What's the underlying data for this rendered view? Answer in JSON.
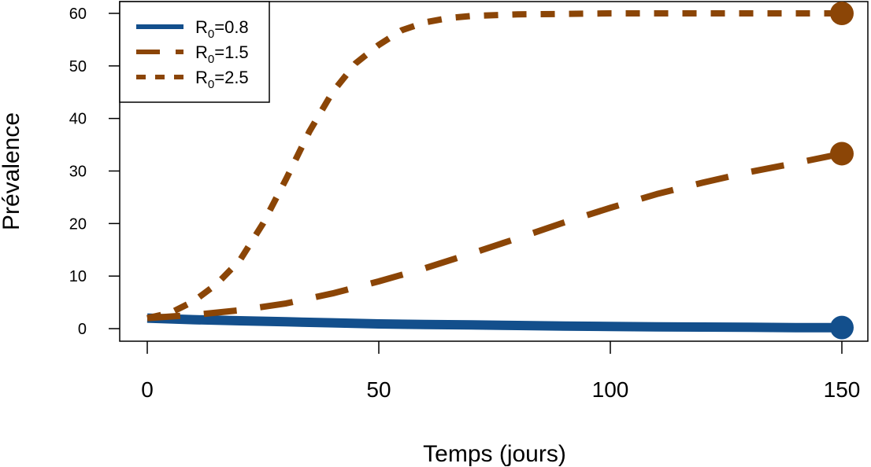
{
  "chart_data": {
    "type": "line",
    "xlabel": "Temps (jours)",
    "ylabel": "Prévalence",
    "xlim": [
      0,
      150
    ],
    "ylim": [
      0,
      60
    ],
    "x_ticks": [
      "0",
      "50",
      "100",
      "150"
    ],
    "y_ticks": [
      "0",
      "10",
      "20",
      "30",
      "40",
      "50",
      "60"
    ],
    "grid": false,
    "legend_position": "top-left",
    "series": [
      {
        "name": "R0=0.8",
        "name_base": "R",
        "name_sub": "0",
        "name_rest": "=0.8",
        "color": "#134f8c",
        "line_style": "solid",
        "x": [
          0,
          10,
          20,
          30,
          40,
          50,
          60,
          70,
          80,
          90,
          100,
          110,
          120,
          130,
          140,
          150
        ],
        "y": [
          2.0,
          1.7,
          1.5,
          1.3,
          1.1,
          0.9,
          0.8,
          0.7,
          0.6,
          0.5,
          0.4,
          0.35,
          0.3,
          0.25,
          0.2,
          0.2
        ],
        "end_marker": true
      },
      {
        "name": "R0=1.5",
        "name_base": "R",
        "name_sub": "0",
        "name_rest": "=1.5",
        "color": "#8b4506",
        "line_style": "dashed",
        "x": [
          0,
          10,
          20,
          30,
          40,
          50,
          60,
          70,
          80,
          90,
          100,
          110,
          120,
          130,
          140,
          150
        ],
        "y": [
          2.0,
          2.6,
          3.5,
          4.8,
          6.7,
          9.0,
          11.5,
          14.3,
          17.2,
          20.2,
          23.0,
          25.6,
          27.8,
          29.8,
          31.5,
          33.3
        ],
        "end_marker": true
      },
      {
        "name": "R0=2.5",
        "name_base": "R",
        "name_sub": "0",
        "name_rest": "=2.5",
        "color": "#8b4506",
        "line_style": "dotted",
        "x": [
          0,
          5,
          10,
          15,
          20,
          25,
          30,
          35,
          40,
          45,
          50,
          55,
          60,
          65,
          70,
          80,
          90,
          100,
          110,
          120,
          130,
          140,
          150
        ],
        "y": [
          2.0,
          3.0,
          5.2,
          8.5,
          13.0,
          20.0,
          28.5,
          37.5,
          45.0,
          50.5,
          54.0,
          56.8,
          58.3,
          59.1,
          59.5,
          59.8,
          59.9,
          60.0,
          60.0,
          60.0,
          60.0,
          60.0,
          60.0
        ],
        "end_marker": true
      }
    ]
  }
}
